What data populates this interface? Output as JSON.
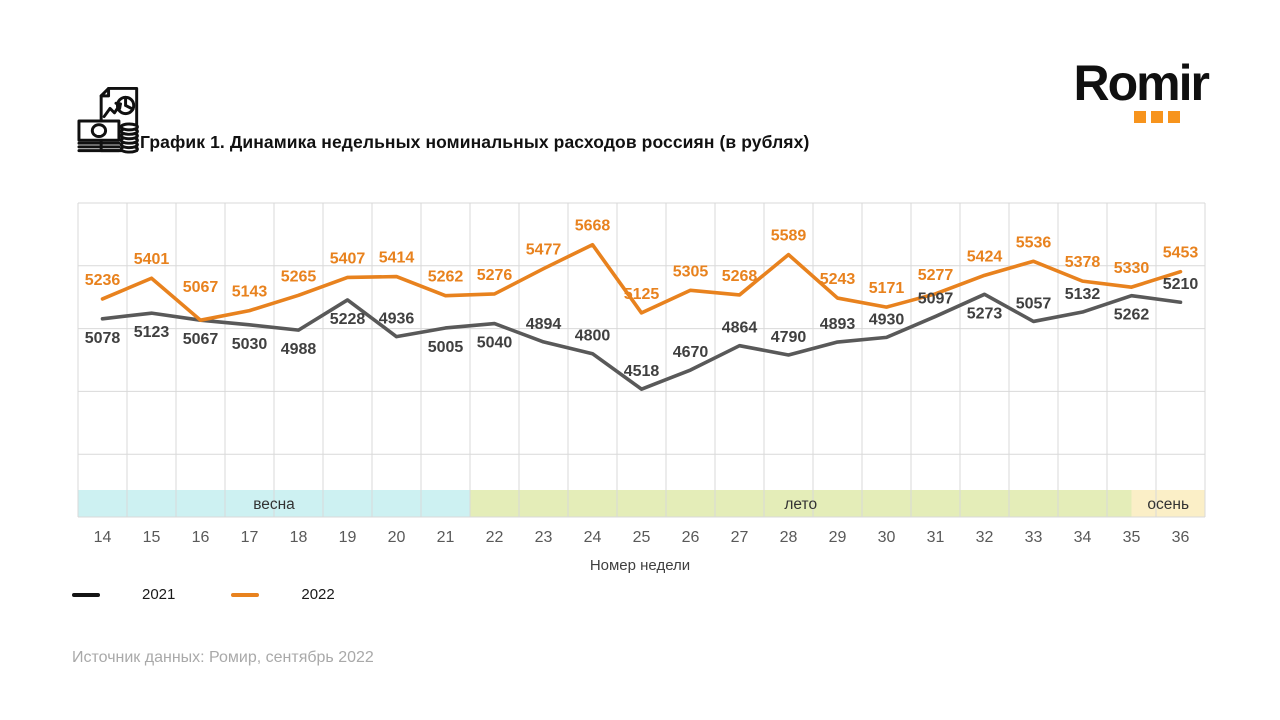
{
  "header": {
    "icon": "report-money-icon",
    "title": "График 1. Динамика недельных номинальных расходов россиян (в рублях)"
  },
  "logo": {
    "text": "Romir",
    "dots_color": "#F7941D"
  },
  "chart_data": {
    "type": "line",
    "title": "График 1. Динамика недельных номинальных расходов россиян (в рублях)",
    "xlabel": "Номер недели",
    "x": [
      14,
      15,
      16,
      17,
      18,
      19,
      20,
      21,
      22,
      23,
      24,
      25,
      26,
      27,
      28,
      29,
      30,
      31,
      32,
      33,
      34,
      35,
      36
    ],
    "ylim": [
      3500,
      6000
    ],
    "grid_step": 500,
    "grid": true,
    "legend_position": "bottom-left",
    "series": [
      {
        "name": "2021",
        "line_color": "#595959",
        "label_color": "#404040",
        "legend_color": "#141414",
        "values": [
          5078,
          5123,
          5067,
          5030,
          4988,
          5228,
          4936,
          5005,
          5040,
          4894,
          4800,
          4518,
          4670,
          4864,
          4790,
          4893,
          4930,
          5097,
          5273,
          5057,
          5132,
          5262,
          5210
        ]
      },
      {
        "name": "2022",
        "line_color": "#E8821E",
        "label_color": "#E8821E",
        "legend_color": "#E8821E",
        "values": [
          5236,
          5401,
          5067,
          5143,
          5265,
          5407,
          5414,
          5262,
          5276,
          5477,
          5668,
          5125,
          5305,
          5268,
          5589,
          5243,
          5171,
          5277,
          5424,
          5536,
          5378,
          5330,
          5453
        ]
      }
    ],
    "seasons": [
      {
        "label": "весна",
        "cells": [
          0,
          8
        ],
        "color": "#CDF1F2"
      },
      {
        "label": "лето",
        "cells": [
          8,
          21.5
        ],
        "color": "#E4EDB8"
      },
      {
        "label": "осень",
        "cells": [
          21.5,
          23
        ],
        "color": "#FBEFC7"
      }
    ]
  },
  "footer": {
    "source": "Источник данных: Ромир, сентябрь 2022"
  }
}
